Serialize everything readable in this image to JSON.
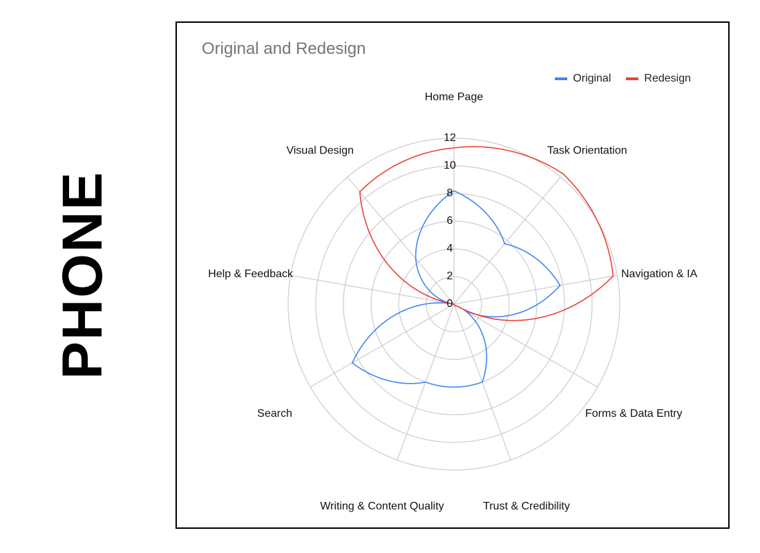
{
  "side_label": "PHONE",
  "chart_data": {
    "type": "radar",
    "title": "Original and Redesign",
    "categories": [
      "Home Page",
      "Task Orientation",
      "Navigation & IA",
      "Forms & Data Entry",
      "Trust & Credibility",
      "Writing & Content Quality",
      "Search",
      "Help & Feedback",
      "Visual Design"
    ],
    "series": [
      {
        "name": "Original",
        "color": "#4285f4",
        "values": [
          8.2,
          5.7,
          7.8,
          0.9,
          6.0,
          6.0,
          8.5,
          0,
          4.3
        ]
      },
      {
        "name": "Redesign",
        "color": "#ea4335",
        "values": [
          11.3,
          12.3,
          11.7,
          0.3,
          0,
          0,
          0,
          0,
          10.6
        ]
      }
    ],
    "rlim": [
      0,
      12
    ],
    "ticks": [
      0,
      2,
      4,
      6,
      8,
      10,
      12
    ],
    "grid": true,
    "legend_position": "top-right"
  }
}
